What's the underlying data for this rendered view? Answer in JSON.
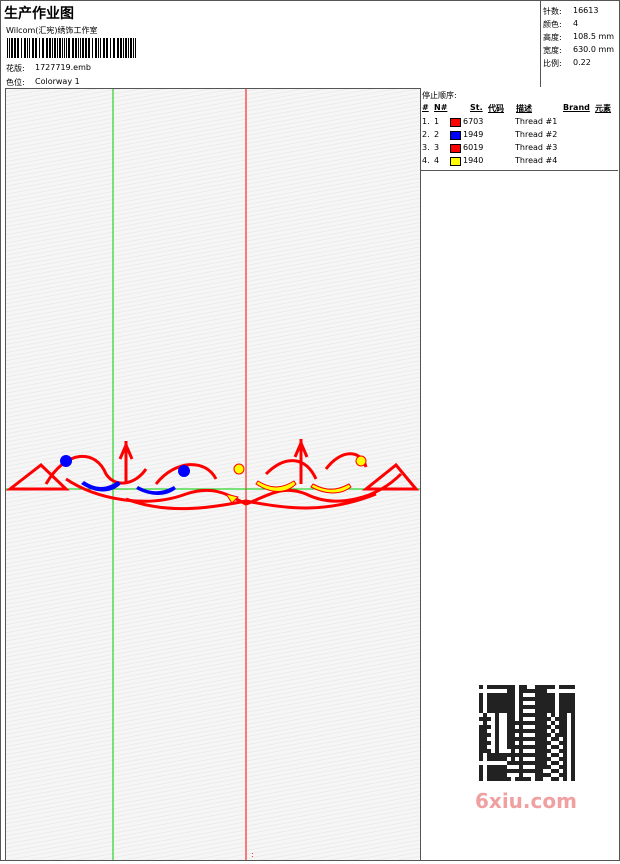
{
  "header": {
    "title": "生产作业图",
    "studio": "Wilcom(汇宪)绣饰工作室",
    "design_label": "花版:",
    "design_file": "1727719.emb",
    "colorway_label": "色位:",
    "colorway": "Colorway 1"
  },
  "stats": [
    {
      "label": "针数:",
      "value": "16613"
    },
    {
      "label": "颜色:",
      "value": "4"
    },
    {
      "label": "高度:",
      "value": "108.5 mm"
    },
    {
      "label": "宽度:",
      "value": "630.0 mm"
    },
    {
      "label": "比例:",
      "value": "0.22"
    }
  ],
  "stop_sequence": {
    "title": "停止顺序:",
    "columns": [
      "#",
      "N#",
      "St.",
      "代码",
      "描述",
      "Brand",
      "元素"
    ],
    "rows": [
      {
        "index": "1.",
        "n": "1",
        "color": "#ff0000",
        "code": "6703",
        "description": "Thread #1"
      },
      {
        "index": "2.",
        "n": "2",
        "color": "#0000ff",
        "code": "1949",
        "description": "Thread #2"
      },
      {
        "index": "3.",
        "n": "3",
        "color": "#ff0000",
        "code": "6019",
        "description": "Thread #3"
      },
      {
        "index": "4.",
        "n": "4",
        "color": "#ffff00",
        "code": "1940",
        "description": "Thread #4"
      }
    ]
  },
  "watermark": "6xiu.com"
}
